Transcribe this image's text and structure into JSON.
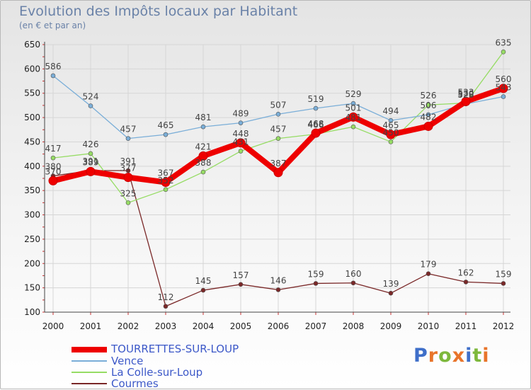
{
  "header": {
    "title": "Evolution des Impôts locaux par Habitant",
    "subtitle": "(en € et par an)"
  },
  "logo": {
    "text": "Proxiti",
    "letter_colors": [
      "#3f6fc9",
      "#e8742a",
      "#7db83c",
      "#e8742a",
      "#3f6fc9",
      "#7db83c",
      "#e8742a"
    ]
  },
  "chart_data": {
    "type": "line",
    "title": "Evolution des Impôts locaux par Habitant",
    "subtitle": "(en € et par an)",
    "xlabel": "",
    "ylabel": "",
    "ylim": [
      100,
      650
    ],
    "yticks": [
      100,
      150,
      200,
      250,
      300,
      350,
      400,
      450,
      500,
      550,
      600,
      650
    ],
    "grid": true,
    "legend_position": "bottom-left",
    "categories": [
      "2000",
      "2001",
      "2002",
      "2003",
      "2004",
      "2005",
      "2006",
      "2007",
      "2008",
      "2009",
      "2010",
      "2011",
      "2012"
    ],
    "series": [
      {
        "name": "Courmes",
        "color": "#7a2828",
        "values": [
          380,
          391,
          391,
          112,
          145,
          157,
          146,
          159,
          160,
          139,
          179,
          162,
          159
        ],
        "labels": [
          "380",
          "391",
          "391",
          "112",
          "145",
          "157",
          "146",
          "159",
          "160",
          "139",
          "179",
          "162",
          "159"
        ]
      },
      {
        "name": "La Colle-sur-Loup",
        "color": "#96dc64",
        "values": [
          417,
          426,
          325,
          352,
          388,
          431,
          457,
          466,
          481,
          450,
          526,
          530,
          635
        ],
        "labels": [
          "417",
          "426",
          "325",
          "352",
          "388",
          "431",
          "457",
          "466",
          "481",
          "450",
          "526",
          "530",
          "635"
        ]
      },
      {
        "name": "Vence",
        "color": "#7aaed8",
        "values": [
          586,
          524,
          457,
          465,
          481,
          489,
          507,
          519,
          529,
          494,
          506,
          528,
          543
        ],
        "labels": [
          "586",
          "524",
          "457",
          "465",
          "481",
          "489",
          "507",
          "519",
          "529",
          "494",
          "506",
          "528",
          "543"
        ]
      },
      {
        "name": "TOURRETTES-SUR-LOUP",
        "color": "#ee0000",
        "values": [
          370,
          389,
          377,
          367,
          421,
          448,
          387,
          468,
          501,
          465,
          482,
          533,
          560
        ],
        "labels": [
          "370",
          "389",
          "377",
          "367",
          "421",
          "448",
          "387",
          "468",
          "501",
          "465",
          "482",
          "533",
          "560"
        ]
      }
    ]
  },
  "legend": {
    "items": [
      {
        "label": "TOURRETTES-SUR-LOUP",
        "color": "#ee0000"
      },
      {
        "label": "Vence",
        "color": "#7aaed8"
      },
      {
        "label": "La Colle-sur-Loup",
        "color": "#96dc64"
      },
      {
        "label": "Courmes",
        "color": "#7a2828"
      }
    ]
  }
}
